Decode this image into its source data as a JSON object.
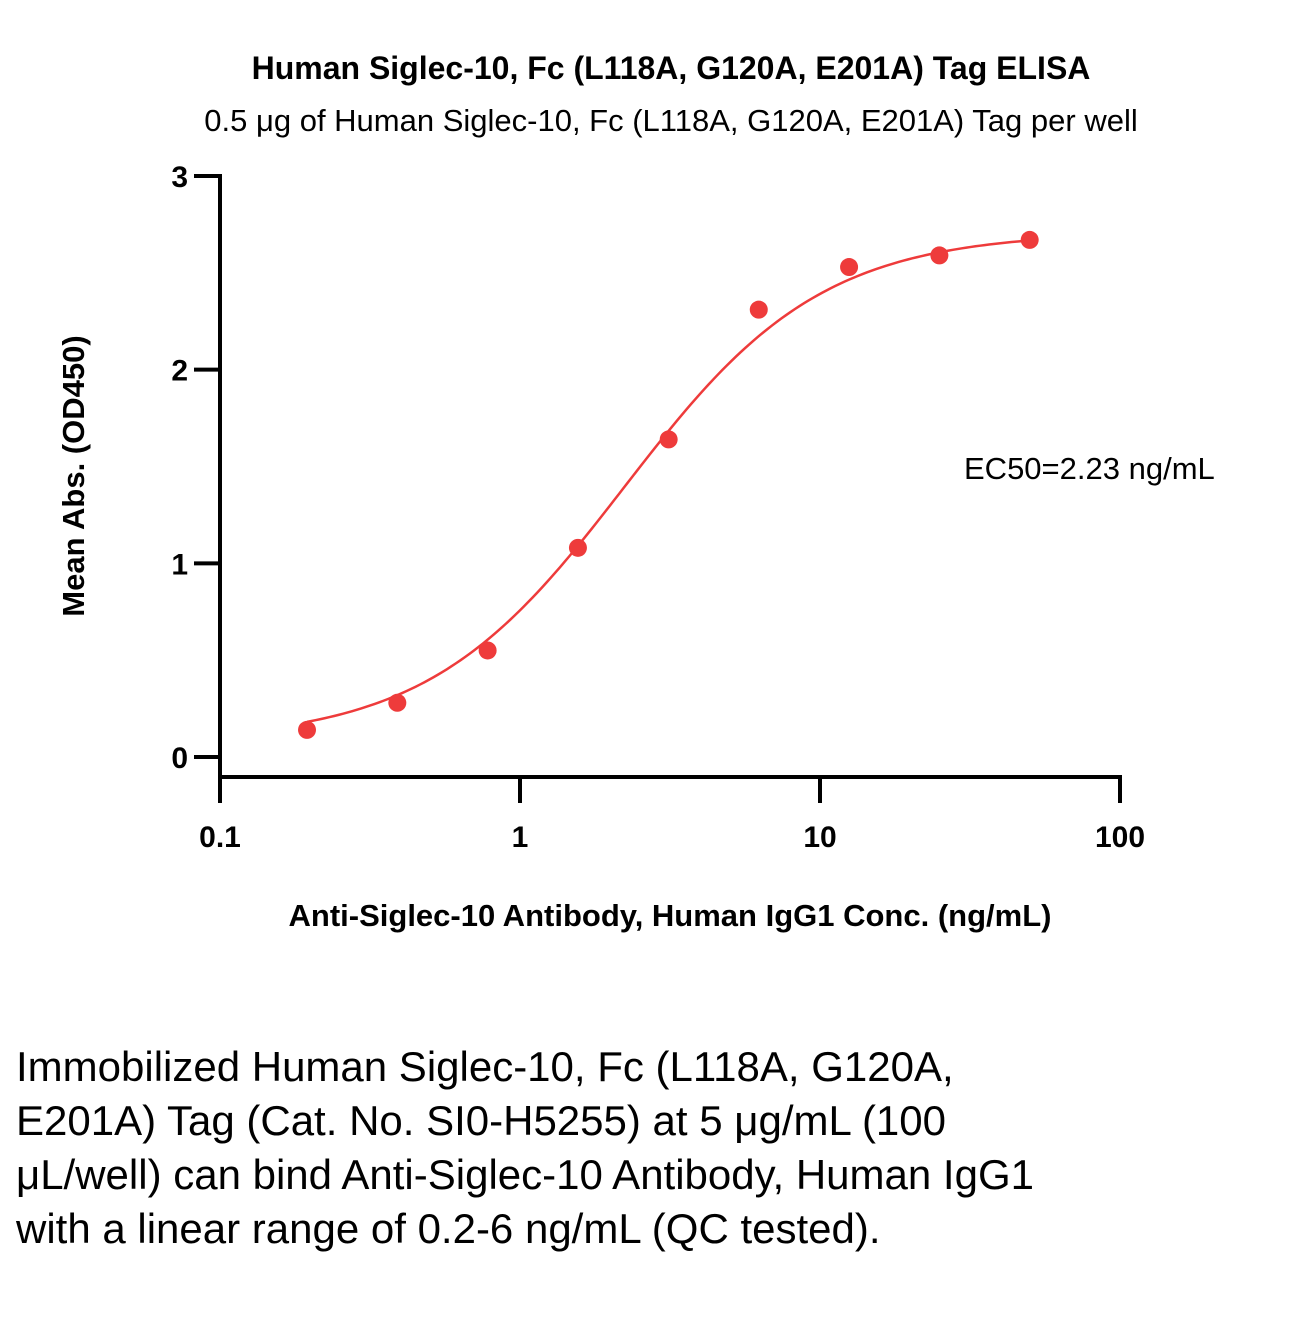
{
  "chart_data": {
    "type": "scatter",
    "title": "Human Siglec-10, Fc (L118A, G120A, E201A) Tag ELISA",
    "subtitle": "0.5 μg of Human Siglec-10, Fc (L118A, G120A, E201A) Tag per well",
    "xlabel": "Anti-Siglec-10 Antibody, Human IgG1 Conc. (ng/mL)",
    "ylabel": "Mean Abs. (OD450)",
    "xscale": "log",
    "xlim": [
      0.1,
      100
    ],
    "ylim": [
      0,
      3
    ],
    "xticks": [
      0.1,
      1,
      10,
      100
    ],
    "xtick_labels": [
      "0.1",
      "1",
      "10",
      "100"
    ],
    "yticks": [
      0,
      1,
      2,
      3
    ],
    "ytick_labels": [
      "0",
      "1",
      "2",
      "3"
    ],
    "grid": false,
    "color": "#EE3B3B",
    "series": [
      {
        "x": [
          0.195,
          0.39,
          0.78,
          1.56,
          3.13,
          6.25,
          12.5,
          25,
          50
        ],
        "y": [
          0.14,
          0.28,
          0.55,
          1.08,
          1.64,
          2.31,
          2.53,
          2.59,
          2.67
        ],
        "fit": "4PL"
      }
    ],
    "annotation": "EC50=2.23 ng/mL",
    "ec50": 2.23
  },
  "caption": "Immobilized Human Siglec-10, Fc (L118A, G120A, E201A) Tag (Cat. No. SI0-H5255) at 5 μg/mL (100 μL/well) can bind Anti-Siglec-10 Antibody, Human IgG1 with a linear range of 0.2-6 ng/mL (QC tested)."
}
